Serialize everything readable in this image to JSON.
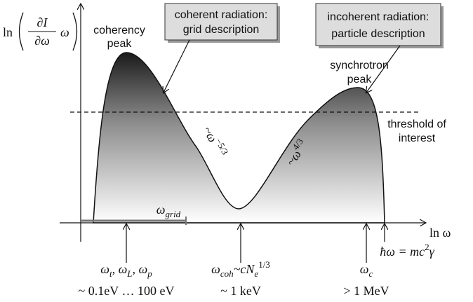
{
  "axes": {
    "y_label": {
      "prefix": "ln",
      "numerator": "∂I",
      "denominator": "∂ω",
      "factor": "ω"
    },
    "x_label": "ln ω"
  },
  "annotations": {
    "coherency_peak": [
      "coherency",
      "peak"
    ],
    "synchrotron_peak": [
      "synchrotron",
      "peak"
    ],
    "coherent_box": [
      "coherent radiation:",
      "grid description"
    ],
    "incoherent_box": [
      "incoherent radiation:",
      "particle description"
    ],
    "threshold": [
      "threshold of",
      "interest"
    ],
    "slope_falling": [
      {
        "t": "~ω"
      },
      {
        "sup": "−5/3"
      }
    ],
    "slope_rising": [
      {
        "t": "~ω"
      },
      {
        "sup": "4/3"
      }
    ],
    "grid_range": [
      {
        "t": "ω"
      },
      {
        "sub": "grid"
      }
    ]
  },
  "markers": [
    {
      "label": [
        {
          "t": "ω"
        },
        {
          "sub": "t"
        },
        {
          "t": ", ω"
        },
        {
          "sub": "L"
        },
        {
          "t": ", ω"
        },
        {
          "sub": "p"
        }
      ],
      "energy": "~ 0.1eV … 100 eV"
    },
    {
      "label": [
        {
          "t": "ω"
        },
        {
          "sub": "coh"
        },
        {
          "t": "~cN"
        },
        {
          "sub": "e"
        },
        {
          "sup": "1/3"
        }
      ],
      "energy": "~ 1 keV"
    },
    {
      "label": [
        {
          "t": "ω"
        },
        {
          "sub": "c"
        }
      ],
      "energy": "> 1 MeV"
    },
    {
      "label": [
        {
          "t": "ħω = mc"
        },
        {
          "sup": "2"
        },
        {
          "t": "γ"
        }
      ]
    }
  ]
}
